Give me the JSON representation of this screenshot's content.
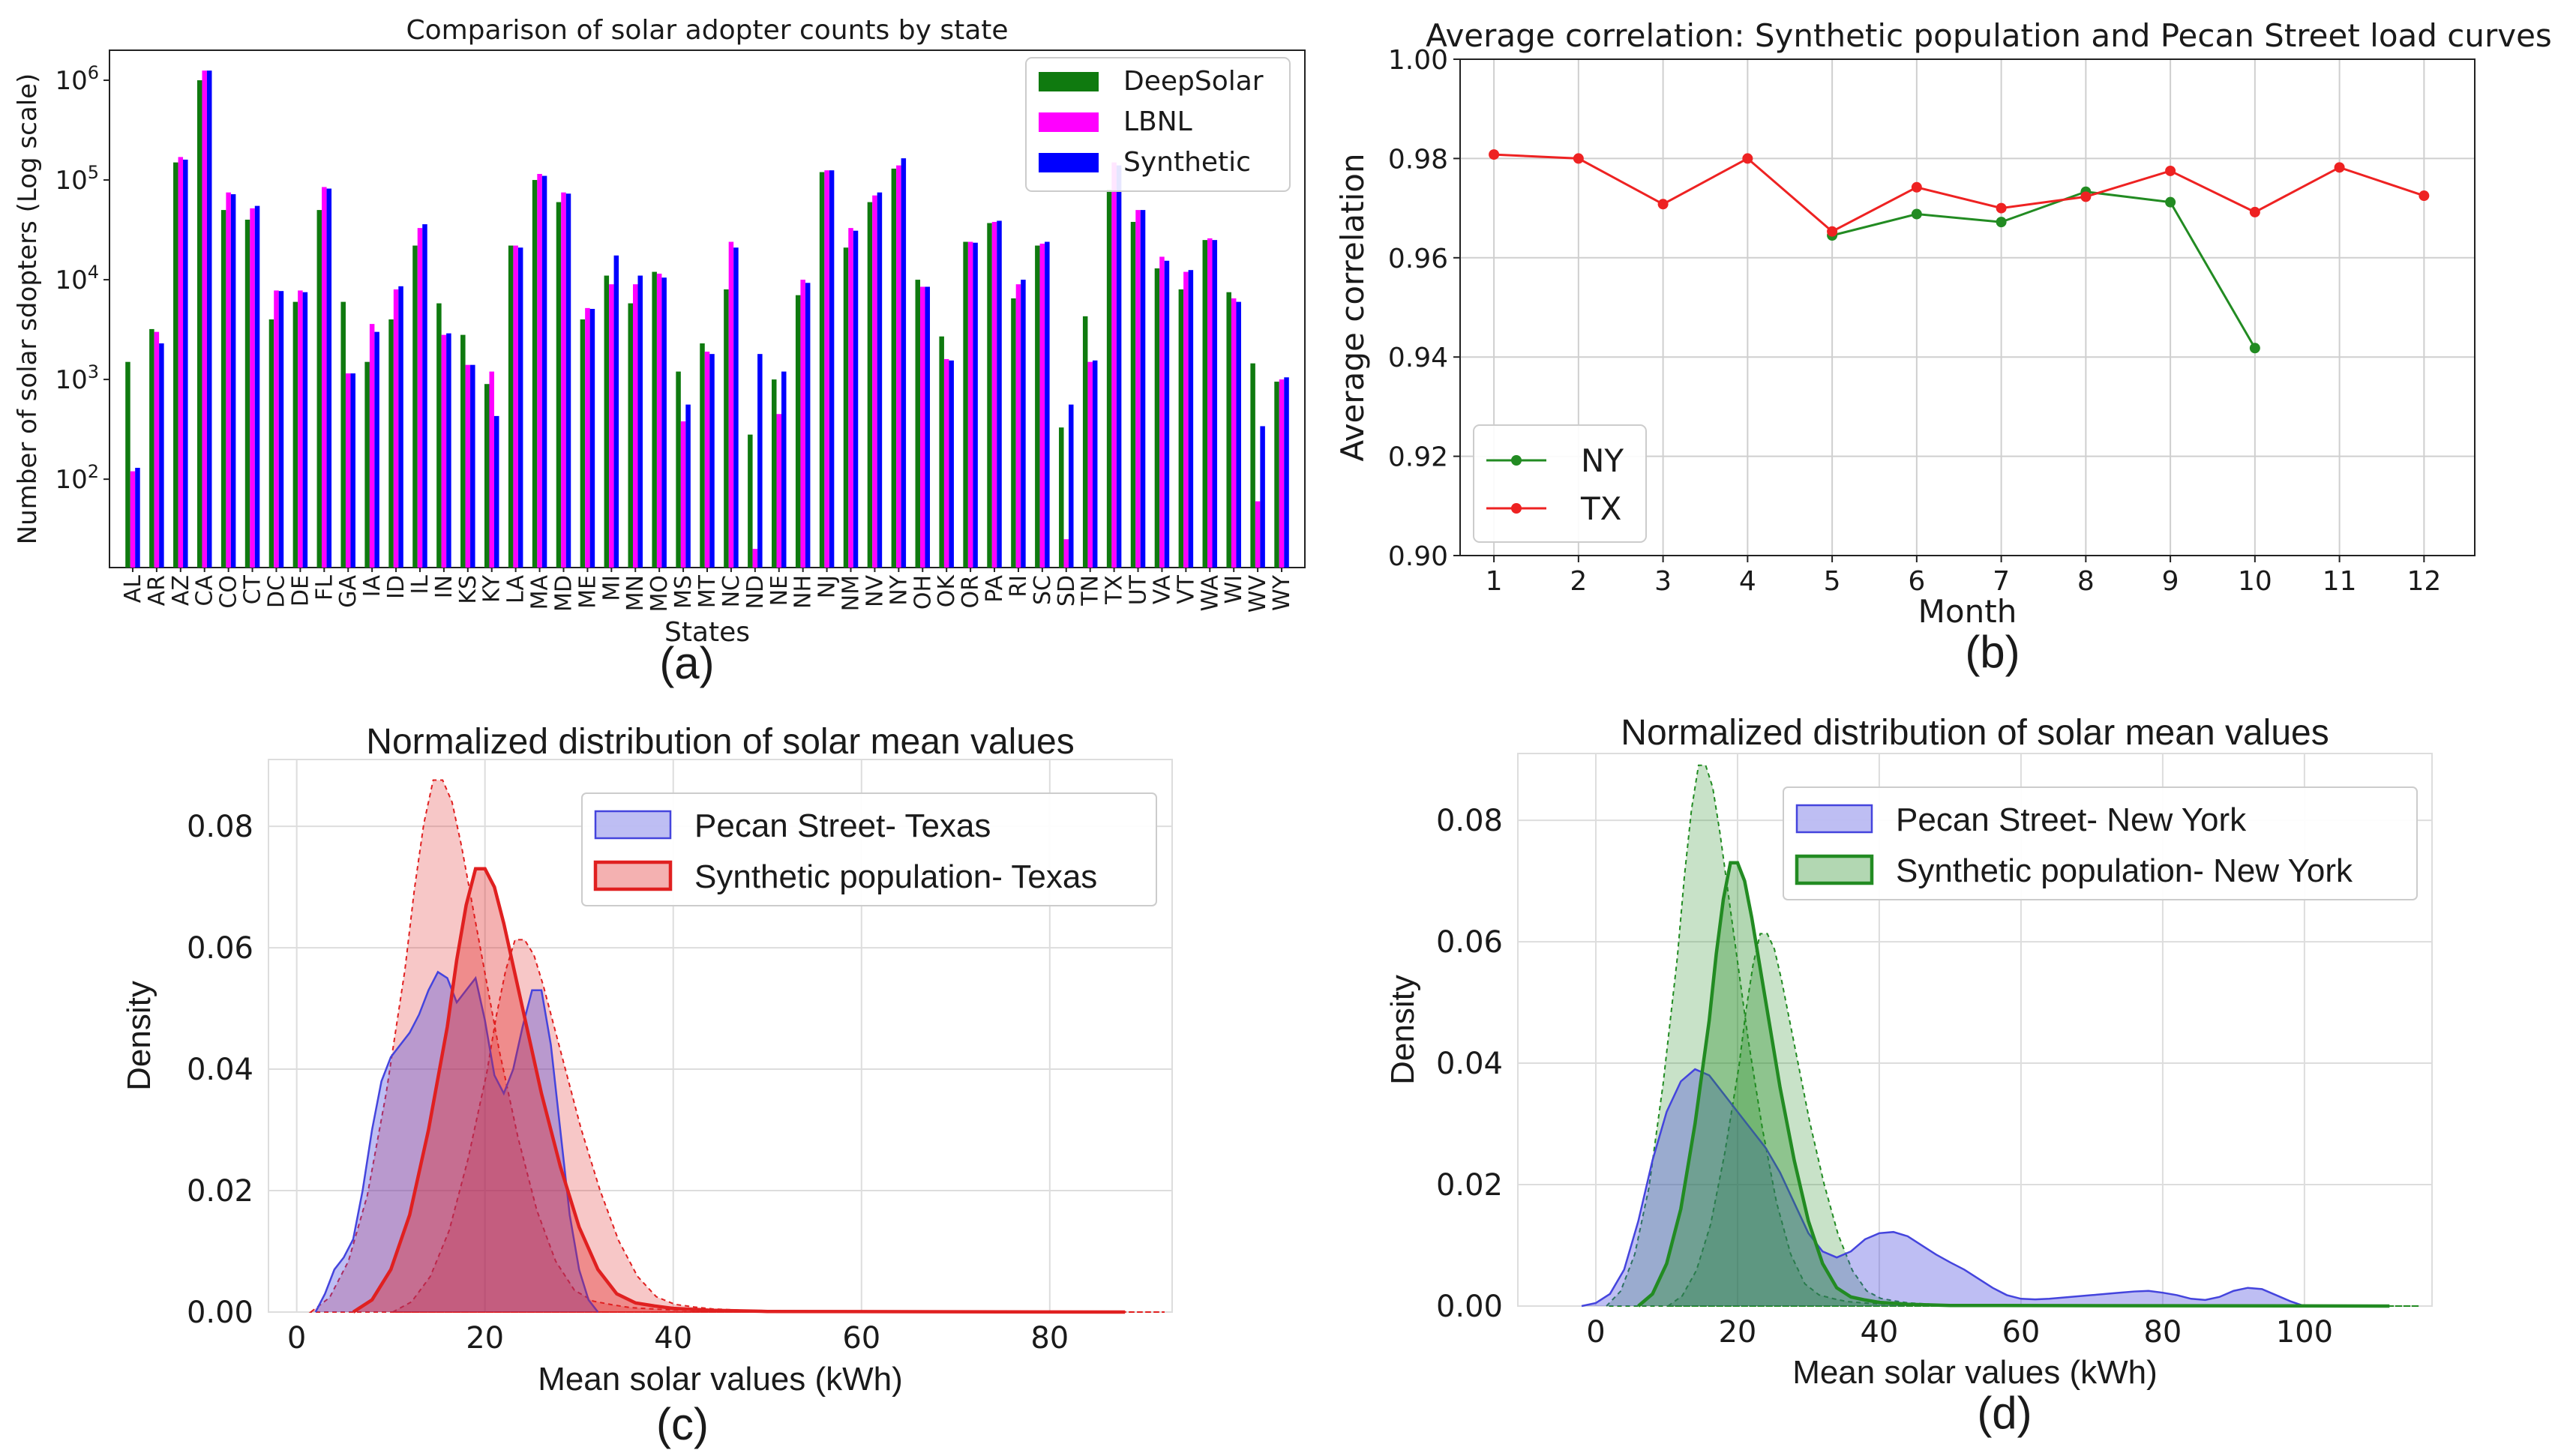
{
  "panels": [
    {
      "id": "a",
      "caption": "(a)"
    },
    {
      "id": "b",
      "caption": "(b)"
    },
    {
      "id": "c",
      "caption": "(c)"
    },
    {
      "id": "d",
      "caption": "(d)"
    }
  ],
  "chart_data": [
    {
      "panel": "a",
      "type": "bar",
      "title": "Comparison of solar adopter counts by state",
      "xlabel": "States",
      "ylabel": "Number of solar sdopters (Log scale)",
      "yscale": "log",
      "ylim": [
        13,
        2000000
      ],
      "yticks": [
        {
          "v": 100,
          "label": "10",
          "exp": "2"
        },
        {
          "v": 1000,
          "label": "10",
          "exp": "3"
        },
        {
          "v": 10000,
          "label": "10",
          "exp": "4"
        },
        {
          "v": 100000,
          "label": "10",
          "exp": "5"
        },
        {
          "v": 1000000,
          "label": "10",
          "exp": "6"
        }
      ],
      "legend_position": "top-right",
      "grid": false,
      "categories": [
        "AL",
        "AR",
        "AZ",
        "CA",
        "CO",
        "CT",
        "DC",
        "DE",
        "FL",
        "GA",
        "IA",
        "ID",
        "IL",
        "IN",
        "KS",
        "KY",
        "LA",
        "MA",
        "MD",
        "ME",
        "MI",
        "MN",
        "MO",
        "MS",
        "MT",
        "NC",
        "ND",
        "NE",
        "NH",
        "NJ",
        "NM",
        "NV",
        "NY",
        "OH",
        "OK",
        "OR",
        "PA",
        "RI",
        "SC",
        "SD",
        "TN",
        "TX",
        "UT",
        "VA",
        "VT",
        "WA",
        "WI",
        "WV",
        "WY"
      ],
      "series": [
        {
          "name": "DeepSolar",
          "color": "#0f7a0f",
          "values": [
            1500,
            3200,
            150000,
            1000000,
            50000,
            40000,
            4000,
            6000,
            50000,
            6000,
            1500,
            4000,
            22000,
            5800,
            2800,
            900,
            22000,
            100000,
            60000,
            4000,
            11000,
            5800,
            12000,
            1200,
            2300,
            8000,
            280,
            1000,
            7000,
            120000,
            21000,
            60000,
            130000,
            10000,
            2700,
            24000,
            37000,
            6500,
            22000,
            330,
            4300,
            80000,
            38000,
            13000,
            8000,
            25000,
            7500,
            1450,
            950
          ]
        },
        {
          "name": "LBNL",
          "color": "#ff00ff",
          "values": [
            120,
            3000,
            170000,
            1250000,
            75000,
            52000,
            7800,
            7800,
            85000,
            1150,
            3600,
            8000,
            33000,
            2800,
            1400,
            1200,
            22000,
            115000,
            75000,
            5200,
            9000,
            9000,
            11500,
            380,
            1900,
            24000,
            20,
            450,
            10000,
            125000,
            33000,
            70000,
            140000,
            8500,
            1600,
            24000,
            38000,
            9000,
            23000,
            25,
            1500,
            150000,
            50000,
            17000,
            12000,
            26000,
            6500,
            60,
            1000
          ]
        },
        {
          "name": "Synthetic",
          "color": "#0000ff",
          "values": [
            130,
            2300,
            160000,
            1250000,
            72000,
            55000,
            7700,
            7500,
            82000,
            1150,
            3000,
            8600,
            36000,
            2900,
            1400,
            430,
            21000,
            110000,
            73000,
            5100,
            17500,
            11000,
            10500,
            560,
            1800,
            21000,
            1800,
            1200,
            9300,
            125000,
            31000,
            75000,
            165000,
            8500,
            1550,
            23500,
            39000,
            10000,
            24000,
            560,
            1550,
            140000,
            50000,
            15500,
            12500,
            25000,
            6000,
            340,
            1050
          ]
        }
      ]
    },
    {
      "panel": "b",
      "type": "line",
      "title": "Average correlation: Synthetic population and Pecan Street load curves",
      "xlabel": "Month",
      "ylabel": "Average correlation",
      "xlim": [
        0.6,
        12.6
      ],
      "ylim": [
        0.9,
        1.0
      ],
      "xticks": [
        1,
        2,
        3,
        4,
        5,
        6,
        7,
        8,
        9,
        10,
        11,
        12
      ],
      "yticks": [
        0.9,
        0.92,
        0.94,
        0.96,
        0.98,
        1.0
      ],
      "ytick_labels": [
        "0.90",
        "0.92",
        "0.94",
        "0.96",
        "0.98",
        "1.00"
      ],
      "grid": true,
      "legend_position": "lower-left",
      "series": [
        {
          "name": "NY",
          "color": "#228b22",
          "x": [
            5,
            6,
            7,
            8,
            9,
            10
          ],
          "y": [
            0.9645,
            0.9688,
            0.9672,
            0.9733,
            0.9712,
            0.9418
          ]
        },
        {
          "name": "TX",
          "color": "#ee2222",
          "x": [
            1,
            2,
            3,
            4,
            5,
            6,
            7,
            8,
            9,
            10,
            11,
            12
          ],
          "y": [
            0.9808,
            0.98,
            0.9708,
            0.98,
            0.9653,
            0.9742,
            0.97,
            0.9723,
            0.9775,
            0.9692,
            0.9782,
            0.9725
          ]
        }
      ]
    },
    {
      "panel": "c",
      "type": "area",
      "title": "Normalized distribution of solar mean values",
      "xlabel": "Mean solar values (kWh)",
      "ylabel": "Density",
      "xlim": [
        -3,
        93
      ],
      "ylim": [
        0,
        0.091
      ],
      "xticks": [
        0,
        20,
        40,
        60,
        80
      ],
      "yticks": [
        0.0,
        0.02,
        0.04,
        0.06,
        0.08
      ],
      "ytick_labels": [
        "0.00",
        "0.02",
        "0.04",
        "0.06",
        "0.08"
      ],
      "grid": true,
      "legend_position": "top-right",
      "series": [
        {
          "name": "Pecan Street- Texas",
          "color": "#4444dd",
          "x": [
            2,
            3,
            4,
            5,
            6,
            7,
            8,
            9,
            10,
            11,
            12,
            13,
            14,
            15,
            16,
            17,
            18,
            19,
            20,
            21,
            22,
            23,
            24,
            25,
            26,
            27,
            28,
            29,
            30,
            31,
            32
          ],
          "y": [
            0,
            0.003,
            0.007,
            0.009,
            0.012,
            0.02,
            0.03,
            0.038,
            0.042,
            0.044,
            0.046,
            0.049,
            0.053,
            0.056,
            0.055,
            0.051,
            0.053,
            0.055,
            0.048,
            0.039,
            0.036,
            0.04,
            0.047,
            0.053,
            0.053,
            0.044,
            0.03,
            0.016,
            0.007,
            0.002,
            0
          ]
        },
        {
          "name": "Synthetic population- Texas",
          "color": "#e02020",
          "x": [
            6,
            8,
            10,
            12,
            14,
            16,
            17,
            18,
            19,
            20,
            21,
            22,
            24,
            26,
            28,
            30,
            32,
            34,
            36,
            38,
            40,
            44,
            50,
            88
          ],
          "y": [
            0,
            0.002,
            0.007,
            0.016,
            0.03,
            0.047,
            0.058,
            0.067,
            0.073,
            0.073,
            0.07,
            0.064,
            0.05,
            0.036,
            0.024,
            0.014,
            0.007,
            0.003,
            0.0015,
            0.001,
            0.0006,
            0.0003,
            0.0001,
            0
          ]
        }
      ]
    },
    {
      "panel": "d",
      "type": "area",
      "title": "Normalized distribution of solar mean values",
      "xlabel": "Mean solar values (kWh)",
      "ylabel": "Density",
      "xlim": [
        -11,
        118
      ],
      "ylim": [
        0,
        0.091
      ],
      "xticks": [
        0,
        20,
        40,
        60,
        80,
        100
      ],
      "yticks": [
        0.0,
        0.02,
        0.04,
        0.06,
        0.08
      ],
      "ytick_labels": [
        "0.00",
        "0.02",
        "0.04",
        "0.06",
        "0.08"
      ],
      "grid": true,
      "legend_position": "top-right",
      "series": [
        {
          "name": "Pecan Street- New York",
          "color": "#4444dd",
          "x": [
            -2,
            0,
            2,
            4,
            6,
            8,
            10,
            12,
            14,
            16,
            18,
            20,
            22,
            24,
            26,
            28,
            30,
            32,
            34,
            36,
            38,
            40,
            42,
            44,
            46,
            48,
            50,
            52,
            54,
            56,
            58,
            60,
            62,
            64,
            66,
            68,
            70,
            72,
            74,
            76,
            78,
            80,
            82,
            84,
            86,
            88,
            90,
            92,
            94,
            96,
            98,
            100
          ],
          "y": [
            0,
            0.0005,
            0.002,
            0.006,
            0.014,
            0.024,
            0.032,
            0.037,
            0.039,
            0.038,
            0.035,
            0.032,
            0.029,
            0.026,
            0.022,
            0.017,
            0.012,
            0.009,
            0.008,
            0.009,
            0.011,
            0.012,
            0.0122,
            0.0115,
            0.01,
            0.0085,
            0.0072,
            0.006,
            0.0045,
            0.003,
            0.0018,
            0.0012,
            0.0011,
            0.0012,
            0.0014,
            0.0016,
            0.0018,
            0.002,
            0.0022,
            0.0024,
            0.0025,
            0.0022,
            0.0018,
            0.0012,
            0.001,
            0.0015,
            0.0025,
            0.003,
            0.0028,
            0.0018,
            0.0008,
            0
          ]
        },
        {
          "name": "Synthetic population- New York",
          "color": "#228b22",
          "x": [
            6,
            8,
            10,
            12,
            14,
            16,
            17,
            18,
            19,
            20,
            21,
            22,
            24,
            26,
            28,
            30,
            32,
            34,
            36,
            38,
            40,
            44,
            50,
            112
          ],
          "y": [
            0,
            0.002,
            0.007,
            0.016,
            0.03,
            0.047,
            0.058,
            0.067,
            0.073,
            0.073,
            0.07,
            0.064,
            0.05,
            0.036,
            0.024,
            0.014,
            0.007,
            0.003,
            0.0015,
            0.001,
            0.0006,
            0.0003,
            0.0001,
            0
          ]
        }
      ]
    }
  ]
}
